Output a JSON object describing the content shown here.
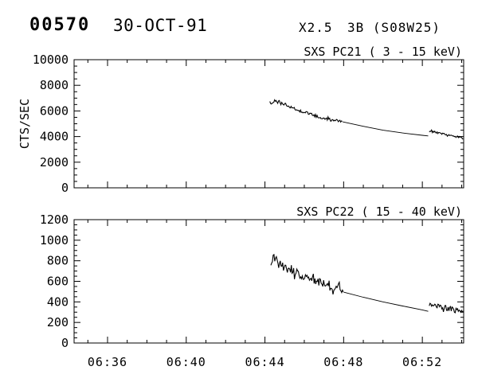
{
  "window": {
    "background": "#ffffff",
    "foreground": "#000000"
  },
  "header": {
    "event_number": "00570",
    "date": "30-OCT-91",
    "xray_class": "X2.5",
    "optical_class_location": "3B (S08W25)"
  },
  "chart_data": [
    {
      "type": "line",
      "instrument": "SXS PC21",
      "title": "SXS PC21  (  3 - 15 keV)",
      "ylabel": "CTS/SEC",
      "ylim": [
        0,
        10000
      ],
      "yticks": [
        0,
        2000,
        4000,
        6000,
        8000,
        10000
      ],
      "ytick_labels": [
        "0",
        "2000",
        "4000",
        "6000",
        "8000",
        "10000"
      ],
      "yminor_interval": 500,
      "xlim_minutes_after_0600": [
        34.3,
        54.1
      ],
      "xticks_minutes_after_0600": [
        36,
        40,
        44,
        48,
        52
      ],
      "xtick_labels": [
        "06:36",
        "06:40",
        "06:44",
        "06:48",
        "06:52"
      ],
      "xminor_interval_minutes": 1,
      "show_xtick_labels": false,
      "grid": false,
      "series_color": "#000000",
      "segments": [
        {
          "style": "noisy",
          "noise_amplitude": 120,
          "points": [
            [
              44.25,
              6650
            ],
            [
              44.45,
              6780
            ],
            [
              44.7,
              6650
            ],
            [
              45.0,
              6480
            ],
            [
              45.5,
              6180
            ],
            [
              46.0,
              5920
            ],
            [
              46.5,
              5640
            ],
            [
              47.0,
              5430
            ],
            [
              47.5,
              5270
            ],
            [
              47.95,
              5150
            ]
          ]
        },
        {
          "style": "thin",
          "points": [
            [
              47.95,
              5150
            ],
            [
              49.0,
              4800
            ],
            [
              50.0,
              4500
            ],
            [
              51.0,
              4280
            ],
            [
              52.0,
              4100
            ],
            [
              52.3,
              4050
            ]
          ]
        },
        {
          "style": "noisy",
          "noise_amplitude": 80,
          "points": [
            [
              52.35,
              4420
            ],
            [
              52.7,
              4330
            ],
            [
              53.1,
              4200
            ],
            [
              53.5,
              4060
            ],
            [
              53.8,
              3960
            ],
            [
              54.1,
              3870
            ]
          ]
        }
      ]
    },
    {
      "type": "line",
      "instrument": "SXS PC22",
      "title": "SXS PC22  ( 15 - 40 keV)",
      "ylabel": "",
      "ylim": [
        0,
        1200
      ],
      "yticks": [
        0,
        200,
        400,
        600,
        800,
        1000,
        1200
      ],
      "ytick_labels": [
        "0",
        "200",
        "400",
        "600",
        "800",
        "1000",
        "1200"
      ],
      "yminor_interval": 50,
      "xlim_minutes_after_0600": [
        34.3,
        54.1
      ],
      "xticks_minutes_after_0600": [
        36,
        40,
        44,
        48,
        52
      ],
      "xtick_labels": [
        "06:36",
        "06:40",
        "06:44",
        "06:48",
        "06:52"
      ],
      "xminor_interval_minutes": 1,
      "show_xtick_labels": true,
      "grid": false,
      "series_color": "#000000",
      "segments": [
        {
          "style": "noisy",
          "noise_amplitude": 40,
          "points": [
            [
              44.3,
              790
            ],
            [
              44.45,
              830
            ],
            [
              44.7,
              770
            ],
            [
              45.0,
              735
            ],
            [
              45.5,
              690
            ],
            [
              46.0,
              650
            ],
            [
              46.5,
              610
            ],
            [
              47.0,
              575
            ],
            [
              47.5,
              535
            ],
            [
              48.0,
              495
            ]
          ]
        },
        {
          "style": "thin",
          "points": [
            [
              48.0,
              495
            ],
            [
              49.0,
              445
            ],
            [
              50.0,
              400
            ],
            [
              51.0,
              360
            ],
            [
              52.0,
              322
            ],
            [
              52.3,
              308
            ]
          ]
        },
        {
          "style": "noisy",
          "noise_amplitude": 24,
          "points": [
            [
              52.35,
              382
            ],
            [
              52.7,
              362
            ],
            [
              53.1,
              345
            ],
            [
              53.5,
              328
            ],
            [
              53.8,
              310
            ],
            [
              54.1,
              292
            ]
          ]
        }
      ]
    }
  ]
}
